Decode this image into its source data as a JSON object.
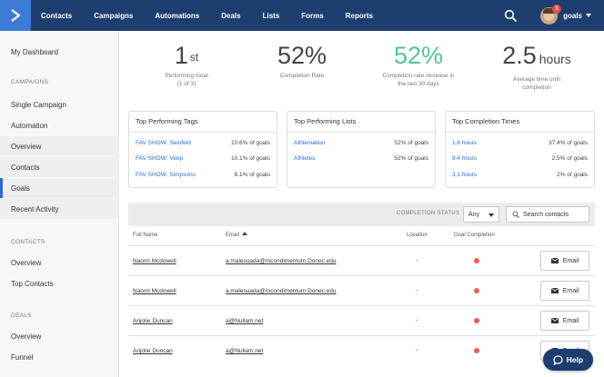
{
  "nav": {
    "links": [
      "Contacts",
      "Campaigns",
      "Automations",
      "Deals",
      "Lists",
      "Forms",
      "Reports"
    ],
    "user_name": "goals",
    "notification_count": "1"
  },
  "sidebar": {
    "my_dashboard": "My Dashboard",
    "campaigns_header": "CAMPAIGNS",
    "single_campaign": "Single Campaign",
    "automation": "Automation",
    "overview": "Overview",
    "contacts": "Contacts",
    "goals": "Goals",
    "recent_activity": "Recent Activity",
    "contacts_header": "CONTACTS",
    "contacts_overview": "Overview",
    "top_contacts": "Top Contacts",
    "deals_header": "DEALS",
    "deals_overview": "Overview",
    "funnel": "Funnel"
  },
  "stats": [
    {
      "value": "1",
      "suffix": "st",
      "label_line1": "Performing Goal",
      "label_line2": "(1 of 3)"
    },
    {
      "value": "52%",
      "label_line1": "Completion Rate",
      "label_line2": ""
    },
    {
      "value": "52%",
      "label_line1": "Completion rate increase in",
      "label_line2": "the last 30 days"
    },
    {
      "value": "2.5",
      "unit": "hours",
      "label_line1": "Average time until",
      "label_line2": "completion"
    }
  ],
  "cards": {
    "tags": {
      "title": "Top Performing Tags",
      "rows": [
        {
          "name": "FAV SHOW: Seinfeld",
          "value": "10.6% of goals"
        },
        {
          "name": "FAV SHOW: Veep",
          "value": "10.1% of goals"
        },
        {
          "name": "FAV SHOW: Simpsons",
          "value": "8.1% of goals"
        }
      ]
    },
    "lists": {
      "title": "Top Performing Lists",
      "rows": [
        {
          "name": "Athlemation",
          "value": "52% of goals"
        },
        {
          "name": "Athletes",
          "value": "52% of goals"
        }
      ]
    },
    "times": {
      "title": "Top Completion Times",
      "rows": [
        {
          "name": "1.6 hours",
          "value": "37.4% of goals"
        },
        {
          "name": "9.4 hours",
          "value": "2.5% of goals"
        },
        {
          "name": "3.1 hours",
          "value": "2% of goals"
        }
      ]
    }
  },
  "filter": {
    "label": "COMPLETION STATUS",
    "select_value": "Any",
    "search_placeholder": "Search contacts"
  },
  "table": {
    "headers": {
      "name": "Full Name",
      "email": "Email",
      "location": "Location",
      "goal": "Goal Completion"
    },
    "email_button": "Email",
    "rows": [
      {
        "name": "Naomi Mcdowell",
        "email": "a.malesuada@Incondimentum Donec.edu",
        "location": "-"
      },
      {
        "name": "Naomi Mcdowell",
        "email": "a.malesuada@Incondimentum Donec.edu",
        "location": "-"
      },
      {
        "name": "Anjolie Duncan",
        "email": "a@Nullam.net",
        "location": "-"
      },
      {
        "name": "Anjolie Duncan",
        "email": "a@Nullam.net",
        "location": "-"
      }
    ]
  },
  "help_label": "Help"
}
